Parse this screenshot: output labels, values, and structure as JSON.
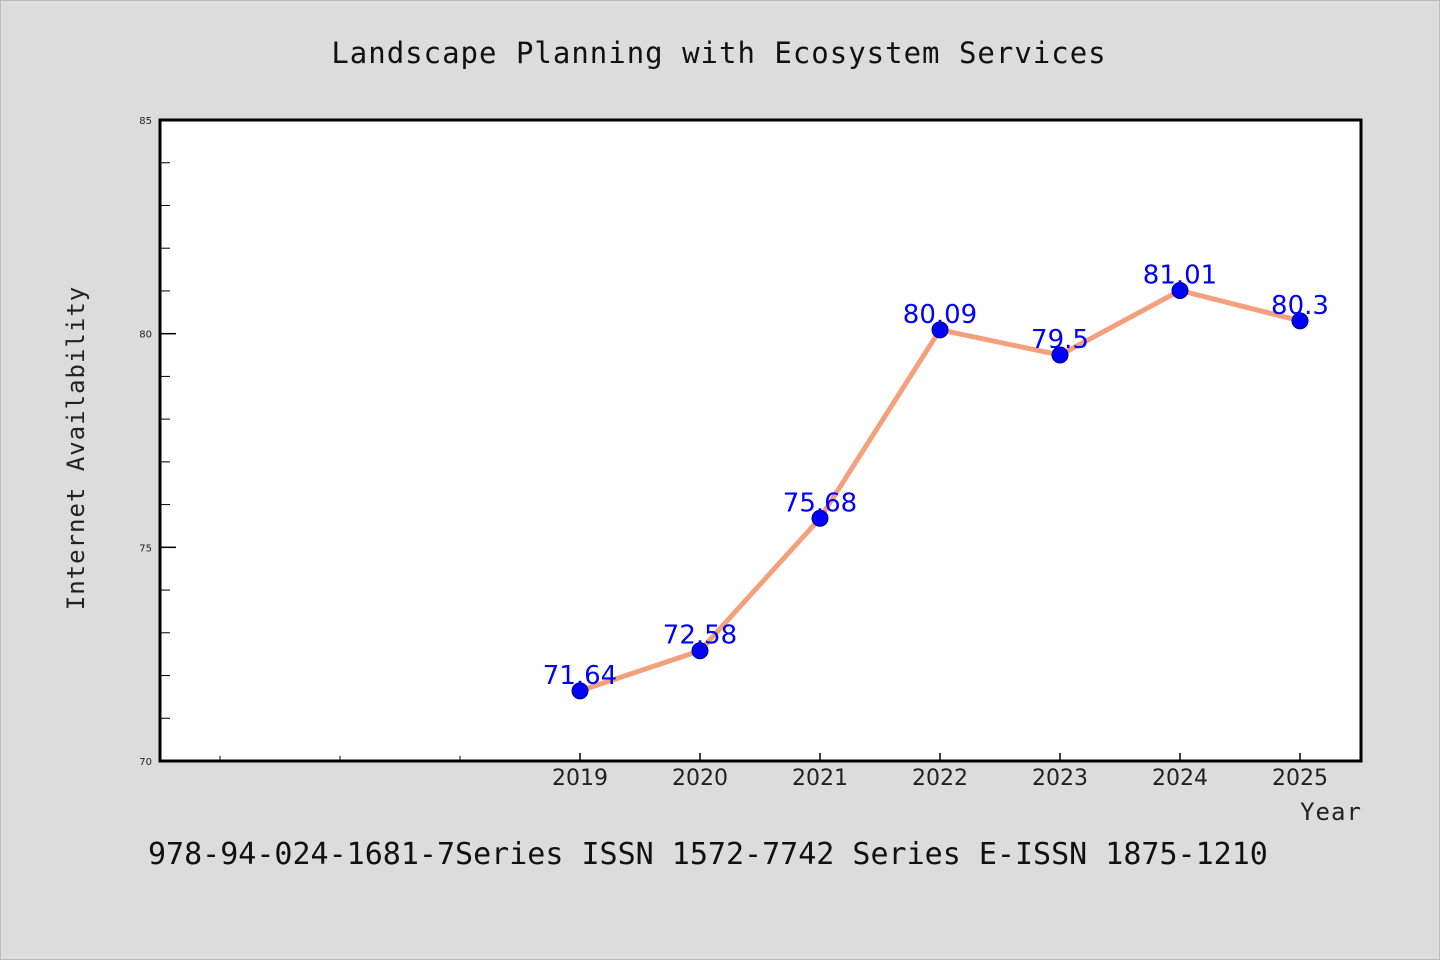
{
  "chart_data": {
    "type": "line",
    "title": "Landscape Planning with Ecosystem Services",
    "xlabel": "Year",
    "ylabel": "Internet Availability",
    "categories": [
      "2019",
      "2020",
      "2021",
      "2022",
      "2023",
      "2024",
      "2025"
    ],
    "values": [
      71.64,
      72.58,
      75.68,
      80.09,
      79.5,
      81.01,
      80.3
    ],
    "data_labels": [
      "71.64",
      "72.58",
      "75.68",
      "80.09",
      "79.5",
      "81.01",
      "80.3"
    ],
    "ylim": [
      70,
      85
    ],
    "y_ticks": [
      "70",
      "75",
      "80",
      "85"
    ],
    "line_color": "#f4a07c",
    "marker_color": "#0000ff",
    "label_color": "#0000ff",
    "grid": false,
    "legend": "none"
  },
  "footer": "978-94-024-1681-7Series ISSN 1572-7742 Series E-ISSN 1875-1210"
}
